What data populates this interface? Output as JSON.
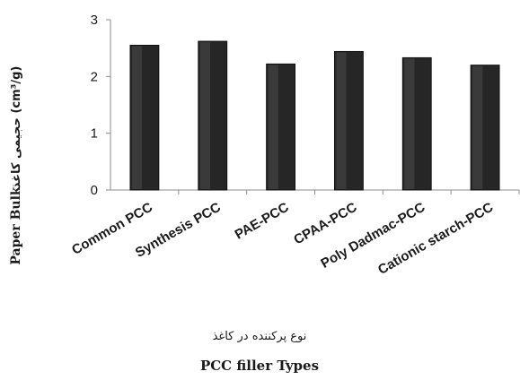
{
  "chart_data": {
    "type": "bar",
    "categories": [
      "Common PCC",
      "Synthesis PCC",
      "PAE-PCC",
      "CPAA-PCC",
      "Poly Dadmac-PCC",
      "Cationic starch-PCC"
    ],
    "values": [
      2.55,
      2.62,
      2.22,
      2.44,
      2.33,
      2.2
    ],
    "ylim": [
      0,
      3
    ],
    "yticks": [
      "0",
      "1",
      "2",
      "3"
    ],
    "ytick_values": [
      0,
      1,
      2,
      3
    ],
    "ylabel_fa": "حجیمی کاغذ (cm³/g)",
    "ylabel_en": "Paper Bulk",
    "xlabel_fa": "نوع پرکننده در کاغذ",
    "xlabel_en": "PCC filler Types",
    "bar_color": "#262626",
    "axis_color": "#8c8c8c",
    "grid": false,
    "legend": "none"
  }
}
